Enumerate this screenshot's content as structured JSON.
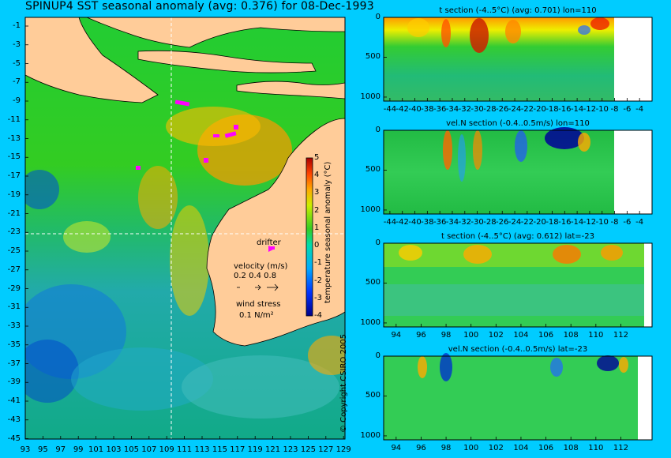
{
  "title": "SPINUP4 SST seasonal anomaly (avg: 0.376) for 08-Dec-1993",
  "copyright": "© Copyright CSIRO 2005",
  "colors": {
    "background": "#00ccff",
    "land": "#ffcc99",
    "drifter": "#ff00ff"
  },
  "map": {
    "lat_ticks": [
      "-1",
      "-3",
      "-5",
      "-7",
      "-9",
      "-11",
      "-13",
      "-15",
      "-17",
      "-19",
      "-21",
      "-23",
      "-25",
      "-27",
      "-29",
      "-31",
      "-33",
      "-35",
      "-37",
      "-39",
      "-41",
      "-43",
      "-45"
    ],
    "lon_ticks": [
      "93",
      "95",
      "97",
      "99",
      "101",
      "103",
      "105",
      "107",
      "109",
      "111",
      "113",
      "115",
      "117",
      "119",
      "121",
      "123",
      "125",
      "127",
      "129"
    ],
    "colorbar": {
      "label": "temperature seasonal anomaly (°C)",
      "ticks": [
        "5",
        "4",
        "3",
        "2",
        "1",
        "0",
        "-1",
        "-2",
        "-3",
        "-4"
      ],
      "range": [
        -4,
        5
      ]
    },
    "legend": {
      "drifter": "drifter",
      "velocity_title": "velocity (m/s)",
      "velocity_values": "0.2 0.4 0.8",
      "wind_title": "wind stress",
      "wind_value": "0.1 N/m²"
    }
  },
  "chart_data": [
    {
      "type": "heatmap",
      "title": "t section (-4..5°C) (avg: 0.701) lon=110",
      "x_ticks": [
        "-44",
        "-42",
        "-40",
        "-38",
        "-36",
        "-34",
        "-32",
        "-30",
        "-28",
        "-26",
        "-24",
        "-22",
        "-20",
        "-18",
        "-16",
        "-14",
        "-12",
        "-10",
        "-8",
        "-6",
        "-4"
      ],
      "y_ticks": [
        "0",
        "500",
        "1000"
      ],
      "xlim": [
        -45,
        -2
      ],
      "ylim": [
        1050,
        0
      ]
    },
    {
      "type": "heatmap",
      "title": "vel.N section (-0.4..0.5m/s) lon=110",
      "x_ticks": [
        "-44",
        "-42",
        "-40",
        "-38",
        "-36",
        "-34",
        "-32",
        "-30",
        "-28",
        "-26",
        "-24",
        "-22",
        "-20",
        "-18",
        "-16",
        "-14",
        "-12",
        "-10",
        "-8",
        "-6",
        "-4"
      ],
      "y_ticks": [
        "0",
        "500",
        "1000"
      ],
      "xlim": [
        -45,
        -2
      ],
      "ylim": [
        1050,
        0
      ]
    },
    {
      "type": "heatmap",
      "title": "t section (-4..5°C) (avg: 0.612) lat=-23",
      "x_ticks": [
        "94",
        "96",
        "98",
        "100",
        "102",
        "104",
        "106",
        "108",
        "110",
        "112"
      ],
      "y_ticks": [
        "0",
        "500",
        "1000"
      ],
      "xlim": [
        93,
        114.5
      ],
      "ylim": [
        1050,
        0
      ]
    },
    {
      "type": "heatmap",
      "title": "vel.N section (-0.4..0.5m/s) lat=-23",
      "x_ticks": [
        "94",
        "96",
        "98",
        "100",
        "102",
        "104",
        "106",
        "108",
        "110",
        "112"
      ],
      "y_ticks": [
        "0",
        "500",
        "1000"
      ],
      "xlim": [
        93,
        114.5
      ],
      "ylim": [
        1050,
        0
      ]
    }
  ]
}
